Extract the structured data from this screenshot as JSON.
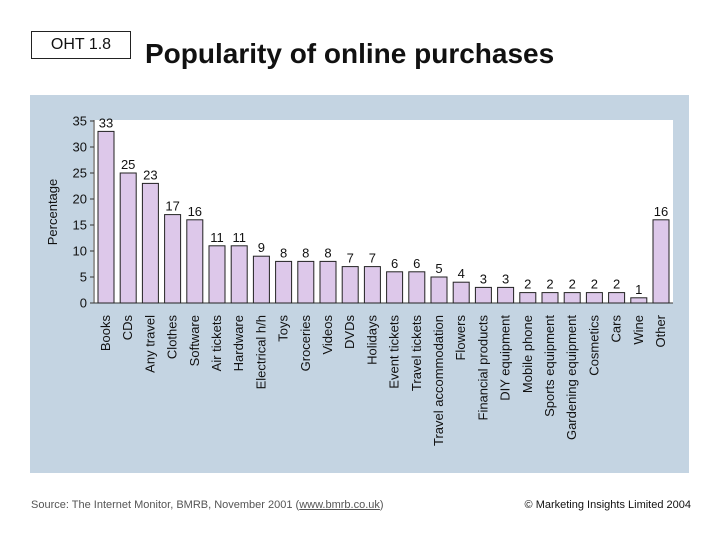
{
  "slide": {
    "tag": "OHT 1.8",
    "title": "Popularity of online purchases",
    "source_prefix": "Source: The Internet Monitor, BMRB, November 2001 (",
    "source_link": "www.bmrb.co.uk",
    "source_suffix": ")",
    "copyright": "© Marketing Insights Limited 2004"
  },
  "chart_data": {
    "type": "bar",
    "title": "",
    "xlabel": "",
    "ylabel": "Percentage",
    "ylim": [
      0,
      35
    ],
    "yticks": [
      0,
      5,
      10,
      15,
      20,
      25,
      30,
      35
    ],
    "categories": [
      "Books",
      "CDs",
      "Any travel",
      "Clothes",
      "Software",
      "Air tickets",
      "Hardware",
      "Electrical h/h",
      "Toys",
      "Groceries",
      "Videos",
      "DVDs",
      "Holidays",
      "Event tickets",
      "Travel tickets",
      "Travel accommodation",
      "Flowers",
      "Financial products",
      "DIY equipment",
      "Mobile phone",
      "Sports equipment",
      "Gardening equipment",
      "Cosmetics",
      "Cars",
      "Wine",
      "Other"
    ],
    "values": [
      33,
      25,
      23,
      17,
      16,
      11,
      11,
      9,
      8,
      8,
      8,
      7,
      7,
      6,
      6,
      5,
      4,
      3,
      3,
      2,
      2,
      2,
      2,
      2,
      1,
      16
    ],
    "bar_color": "#ddc8ea",
    "grid": false
  }
}
